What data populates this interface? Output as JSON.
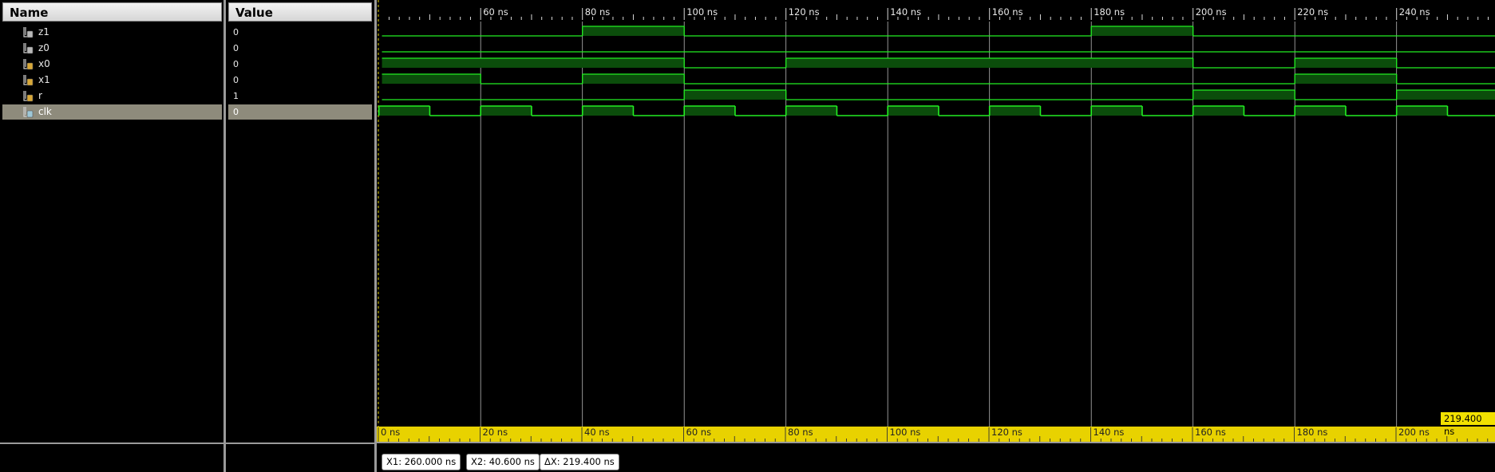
{
  "headers": {
    "name": "Name",
    "value": "Value"
  },
  "signals": [
    {
      "name": "z1",
      "value": "0",
      "icon": "output-signal-icon"
    },
    {
      "name": "z0",
      "value": "0",
      "icon": "output-signal-icon"
    },
    {
      "name": "x0",
      "value": "0",
      "icon": "input-signal-icon"
    },
    {
      "name": "x1",
      "value": "0",
      "icon": "input-signal-icon"
    },
    {
      "name": "r",
      "value": "1",
      "icon": "input-signal-icon"
    },
    {
      "name": "clk",
      "value": "0",
      "icon": "clock-signal-icon",
      "selected": true
    }
  ],
  "top_ruler": {
    "labels": [
      "60 ns",
      "80 ns",
      "100 ns",
      "120 ns",
      "140 ns",
      "160 ns",
      "180 ns",
      "200 ns",
      "220 ns",
      "240 ns"
    ]
  },
  "bottom_ruler": {
    "labels": [
      "0 ns",
      "20 ns",
      "40 ns",
      "60 ns",
      "80 ns",
      "100 ns",
      "120 ns",
      "140 ns",
      "160 ns",
      "180 ns",
      "200 ns"
    ]
  },
  "cursors": {
    "x1": "X1: 260.000 ns",
    "x2": "X2: 40.600 ns",
    "dx": "ΔX: 219.400 ns",
    "dx_flag": "219.400 ns"
  },
  "colors": {
    "wave": "#22ee22",
    "wave_fill": "#0b4d0b",
    "ruler": "#e8d200",
    "grid": "#b8b8b8"
  },
  "waveforms": {
    "time_range_ns": [
      40.6,
      260
    ],
    "z1": [
      [
        40.6,
        0
      ],
      [
        80,
        1
      ],
      [
        100,
        0
      ],
      [
        180,
        1
      ],
      [
        200,
        0
      ]
    ],
    "z0": [
      [
        40.6,
        0
      ]
    ],
    "x0": [
      [
        40.6,
        1
      ],
      [
        100,
        0
      ],
      [
        120,
        1
      ],
      [
        200,
        0
      ],
      [
        220,
        1
      ],
      [
        240,
        0
      ]
    ],
    "x1": [
      [
        40.6,
        1
      ],
      [
        60,
        0
      ],
      [
        80,
        1
      ],
      [
        100,
        0
      ],
      [
        220,
        1
      ],
      [
        240,
        0
      ]
    ],
    "r": [
      [
        40.6,
        0
      ],
      [
        100,
        1
      ],
      [
        120,
        0
      ],
      [
        200,
        1
      ],
      [
        220,
        0
      ],
      [
        240,
        1
      ]
    ],
    "clk_period_ns": 20,
    "clk_high_ns": 10
  }
}
